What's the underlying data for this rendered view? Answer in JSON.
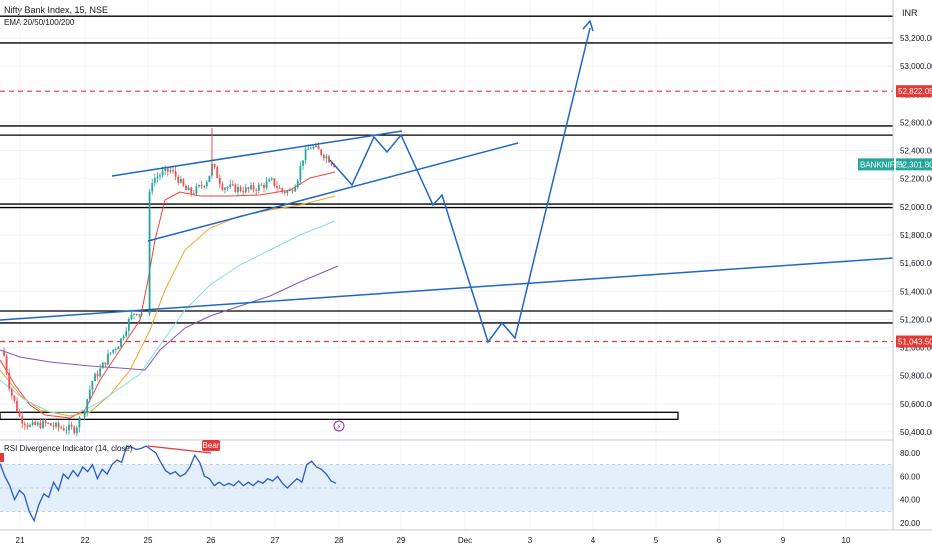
{
  "header": {
    "symbol_title": "Nifty Bank Index, 15, NSE",
    "indicator_label": "EMA 20/50/100/200",
    "currency": "INR"
  },
  "rsi_panel": {
    "label": "RSI Divergence Indicator (14, close)",
    "bear_badge": "Bear",
    "ticks": [
      "80.00",
      "60.00",
      "40.00",
      "20.00"
    ]
  },
  "colors": {
    "candle_up": "#26a69a",
    "candle_down": "#ef5350",
    "drawing_blue": "#1e66c8",
    "ema20": "#f44336",
    "ema50": "#f5a623",
    "ema100": "#80deea",
    "ema200": "#7e57c2",
    "support_red": "#e53935",
    "rsi_line": "#2a5ac8",
    "rsi_band": "#e3f0fb"
  },
  "chart_data": {
    "type": "candlestick",
    "y_axis": {
      "range": [
        50380,
        53380
      ],
      "ticks": [
        "53,200.00",
        "53,000.00",
        "52,800.00",
        "52,600.00",
        "52,400.00",
        "52,200.00",
        "52,000.00",
        "51,800.00",
        "51,600.00",
        "51,400.00",
        "51,200.00",
        "51,000.00",
        "50,800.00",
        "50,600.00",
        "50,400.00"
      ]
    },
    "x_axis": {
      "ticks": [
        "21",
        "22",
        "25",
        "26",
        "27",
        "28",
        "29",
        "Dec",
        "3",
        "4",
        "5",
        "6",
        "9",
        "10"
      ]
    },
    "price_tags": [
      {
        "label": "52,822.05",
        "value": 52822,
        "color": "#e53935"
      },
      {
        "label": "52,301.80",
        "value": 52302,
        "color": "#26a69a"
      },
      {
        "label": "51,043.50",
        "value": 51043,
        "color": "#e53935"
      }
    ],
    "symbol_tag": "BANKNIFTY",
    "horizontal_levels": [
      53355,
      53165,
      52575,
      52510,
      52020,
      51995,
      51260,
      51175
    ],
    "support_lines_dashed": [
      52822,
      51043
    ],
    "session_marker": "⚡",
    "rsi_values": [
      71,
      60,
      52,
      40,
      48,
      44,
      30,
      22,
      36,
      45,
      42,
      55,
      48,
      62,
      58,
      65,
      60,
      68,
      64,
      70,
      58,
      66,
      62,
      70,
      74,
      72,
      86,
      85,
      83,
      84,
      86,
      83,
      80,
      72,
      65,
      62,
      64,
      60,
      62,
      68,
      78,
      72,
      60,
      58,
      52,
      55,
      52,
      54,
      52,
      56,
      52,
      55,
      52,
      56,
      54,
      58,
      56,
      60,
      54,
      50,
      54,
      58,
      55,
      70,
      73,
      68,
      66,
      62,
      56,
      54
    ]
  }
}
